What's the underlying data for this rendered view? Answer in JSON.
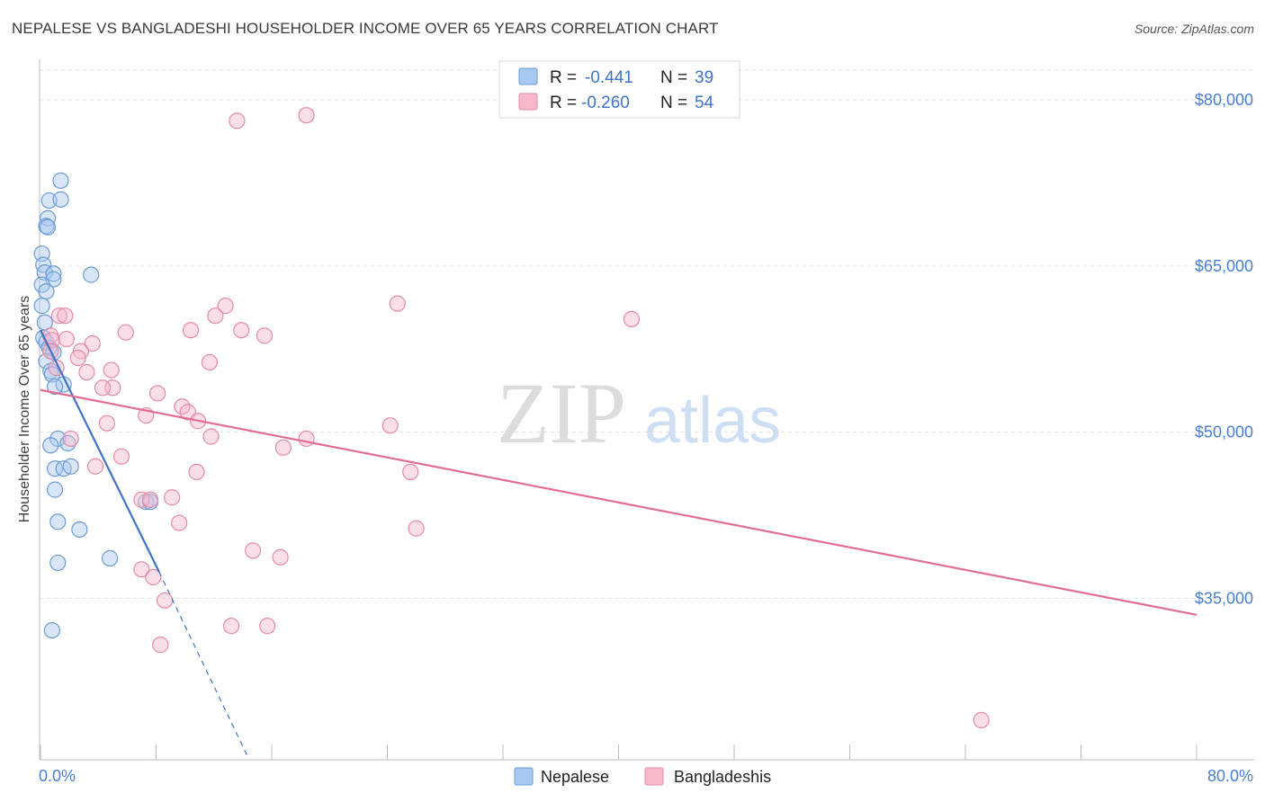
{
  "title": "NEPALESE VS BANGLADESHI HOUSEHOLDER INCOME OVER 65 YEARS CORRELATION CHART",
  "source": "Source: ZipAtlas.com",
  "watermark": {
    "zip": "ZIP",
    "atlas": "atlas"
  },
  "stats": [
    {
      "r_label": "R =",
      "r_value": "-0.441",
      "n_label": "N =",
      "n_value": "39",
      "color": "#a9c8f0",
      "stroke": "#6b9bd6"
    },
    {
      "r_label": "R =",
      "r_value": "-0.260",
      "n_label": "N =",
      "n_value": "54",
      "color": "#f7b8cb",
      "stroke": "#e68aa6"
    }
  ],
  "legend": [
    {
      "label": "Nepalese",
      "color": "#a9c8f0",
      "stroke": "#6b9bd6"
    },
    {
      "label": "Bangladeshis",
      "color": "#f7b8cb",
      "stroke": "#e68aa6"
    }
  ],
  "chart_data": {
    "type": "scatter",
    "title": "NEPALESE VS BANGLADESHI HOUSEHOLDER INCOME OVER 65 YEARS CORRELATION CHART",
    "xlabel": "",
    "ylabel": "Householder Income Over 65 years",
    "xlim": [
      0,
      80
    ],
    "ylim": [
      20500,
      83000
    ],
    "x_tick_labels": [
      {
        "value": 0,
        "label": "0.0%"
      },
      {
        "value": 80,
        "label": "80.0%"
      }
    ],
    "x_minor_ticks": [
      0,
      8,
      16,
      24,
      32,
      40,
      48,
      56,
      64,
      72,
      80
    ],
    "y_ticks": [
      {
        "value": 80000,
        "label": "$80,000"
      },
      {
        "value": 65000,
        "label": "$65,000"
      },
      {
        "value": 50000,
        "label": "$50,000"
      },
      {
        "value": 35000,
        "label": "$35,000"
      }
    ],
    "series": [
      {
        "name": "Nepalese",
        "color": "#a9c8f0",
        "stroke": "#6b9bd6",
        "line_color": "#3f74c8",
        "trend": {
          "x0": 0.0,
          "y0": 59200,
          "x1": 8.2,
          "y1": 37400,
          "dash_to_x": 14.3,
          "dash_to_y": 20800
        },
        "points": [
          [
            1.4,
            72700
          ],
          [
            0.6,
            70900
          ],
          [
            1.4,
            71000
          ],
          [
            0.5,
            69300
          ],
          [
            0.4,
            68600
          ],
          [
            0.5,
            68500
          ],
          [
            0.1,
            66100
          ],
          [
            0.2,
            65100
          ],
          [
            0.3,
            64400
          ],
          [
            0.9,
            64300
          ],
          [
            3.5,
            64200
          ],
          [
            0.9,
            63800
          ],
          [
            0.1,
            63300
          ],
          [
            0.4,
            62700
          ],
          [
            0.1,
            61400
          ],
          [
            0.3,
            59900
          ],
          [
            0.2,
            58500
          ],
          [
            0.4,
            58100
          ],
          [
            0.6,
            57600
          ],
          [
            0.9,
            57200
          ],
          [
            0.4,
            56400
          ],
          [
            0.7,
            55500
          ],
          [
            0.8,
            55200
          ],
          [
            1.6,
            54300
          ],
          [
            1.0,
            54100
          ],
          [
            1.2,
            49400
          ],
          [
            0.7,
            48800
          ],
          [
            1.9,
            49000
          ],
          [
            1.0,
            46700
          ],
          [
            1.6,
            46700
          ],
          [
            2.1,
            46900
          ],
          [
            1.0,
            44800
          ],
          [
            7.3,
            43700
          ],
          [
            7.6,
            43700
          ],
          [
            1.2,
            41900
          ],
          [
            2.7,
            41200
          ],
          [
            4.8,
            38600
          ],
          [
            1.2,
            38200
          ],
          [
            0.8,
            32100
          ]
        ]
      },
      {
        "name": "Bangladeshis",
        "color": "#f7b8cb",
        "stroke": "#e68aa6",
        "line_color": "#e26d93",
        "trend": {
          "x0": 0.0,
          "y0": 53800,
          "x1": 80.0,
          "y1": 33500
        },
        "points": [
          [
            13.6,
            78100
          ],
          [
            18.4,
            78600
          ],
          [
            24.7,
            61600
          ],
          [
            12.8,
            61400
          ],
          [
            12.1,
            60500
          ],
          [
            1.3,
            60500
          ],
          [
            1.7,
            60500
          ],
          [
            40.9,
            60200
          ],
          [
            10.4,
            59200
          ],
          [
            13.9,
            59200
          ],
          [
            15.5,
            58700
          ],
          [
            5.9,
            59000
          ],
          [
            0.7,
            58700
          ],
          [
            0.8,
            58300
          ],
          [
            3.6,
            58000
          ],
          [
            1.8,
            58400
          ],
          [
            0.7,
            57300
          ],
          [
            2.8,
            57300
          ],
          [
            2.6,
            56700
          ],
          [
            11.7,
            56300
          ],
          [
            1.1,
            55800
          ],
          [
            3.2,
            55400
          ],
          [
            4.9,
            55600
          ],
          [
            5.0,
            54000
          ],
          [
            4.3,
            54000
          ],
          [
            8.1,
            53500
          ],
          [
            9.8,
            52300
          ],
          [
            10.2,
            51800
          ],
          [
            7.3,
            51500
          ],
          [
            10.9,
            51000
          ],
          [
            4.6,
            50800
          ],
          [
            24.2,
            50600
          ],
          [
            11.8,
            49600
          ],
          [
            18.4,
            49400
          ],
          [
            2.1,
            49400
          ],
          [
            16.8,
            48600
          ],
          [
            5.6,
            47800
          ],
          [
            3.8,
            46900
          ],
          [
            10.8,
            46400
          ],
          [
            25.6,
            46400
          ],
          [
            7.0,
            43900
          ],
          [
            7.6,
            43900
          ],
          [
            9.1,
            44100
          ],
          [
            9.6,
            41800
          ],
          [
            26.0,
            41300
          ],
          [
            14.7,
            39300
          ],
          [
            16.6,
            38700
          ],
          [
            7.0,
            37600
          ],
          [
            7.8,
            36900
          ],
          [
            8.6,
            34800
          ],
          [
            13.2,
            32500
          ],
          [
            15.7,
            32500
          ],
          [
            8.3,
            30800
          ],
          [
            65.1,
            24000
          ]
        ]
      }
    ]
  }
}
